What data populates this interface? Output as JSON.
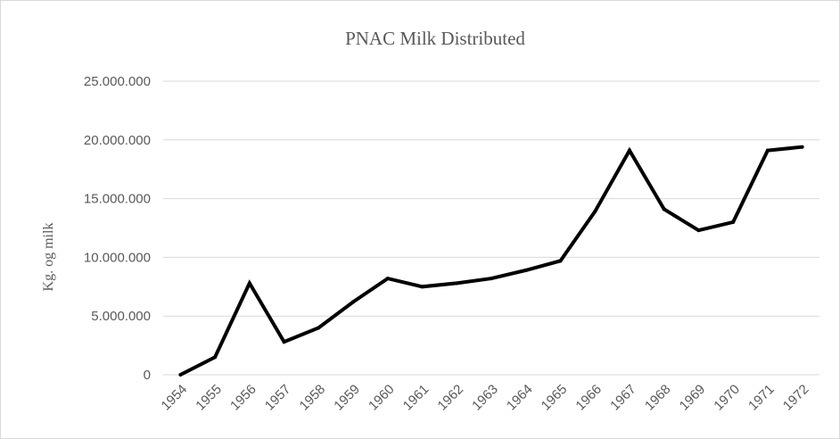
{
  "chart_data": {
    "type": "line",
    "title": "PNAC Milk Distributed",
    "xlabel": "",
    "ylabel": "Kg. og milk",
    "x": [
      "1954",
      "1955",
      "1956",
      "1957",
      "1958",
      "1959",
      "1960",
      "1961",
      "1962",
      "1963",
      "1964",
      "1965",
      "1966",
      "1967",
      "1968",
      "1969",
      "1970",
      "1971",
      "1972"
    ],
    "series": [
      {
        "name": "",
        "values": [
          0,
          1500000,
          7800000,
          2800000,
          4000000,
          6200000,
          8200000,
          7500000,
          7800000,
          8200000,
          8900000,
          9700000,
          13900000,
          19100000,
          14100000,
          12300000,
          13000000,
          19100000,
          19400000
        ]
      }
    ],
    "ylim": [
      0,
      25000000
    ],
    "yticks": [
      0,
      5000000,
      10000000,
      15000000,
      20000000,
      25000000
    ],
    "ytick_labels": [
      "0",
      "5.000.000",
      "10.000.000",
      "15.000.000",
      "20.000.000",
      "25.000.000"
    ],
    "grid": true,
    "legend": "none",
    "line_color": "#000000",
    "grid_color": "#d9d9d9",
    "text_color": "#595959"
  }
}
